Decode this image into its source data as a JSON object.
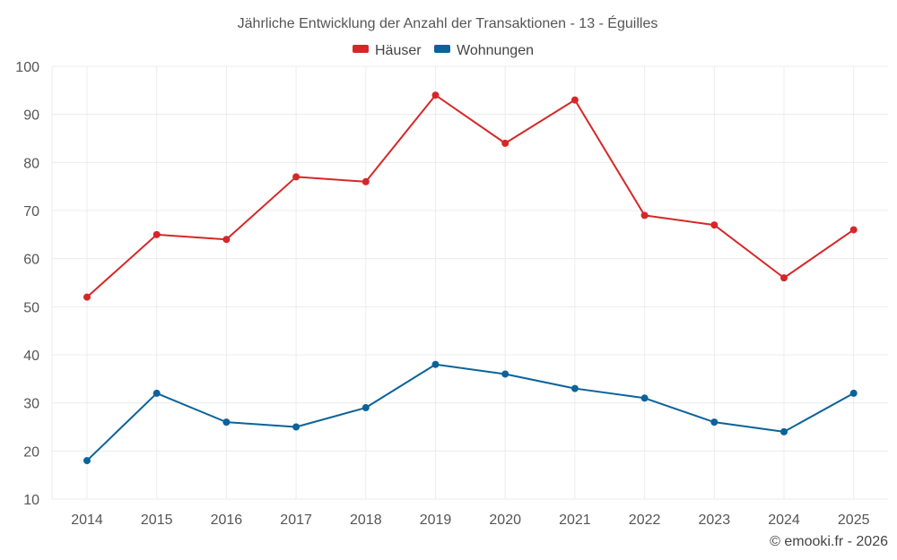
{
  "chart_data": {
    "type": "line",
    "title": "Jährliche Entwicklung der Anzahl der Transaktionen - 13 - Éguilles",
    "categories": [
      "2014",
      "2015",
      "2016",
      "2017",
      "2018",
      "2019",
      "2020",
      "2021",
      "2022",
      "2023",
      "2024",
      "2025"
    ],
    "series": [
      {
        "name": "Häuser",
        "color": "#d62728",
        "values": [
          52,
          65,
          64,
          77,
          76,
          94,
          84,
          93,
          69,
          67,
          56,
          66
        ]
      },
      {
        "name": "Wohnungen",
        "color": "#0b6399",
        "values": [
          18,
          32,
          26,
          25,
          29,
          38,
          36,
          33,
          31,
          26,
          24,
          32
        ]
      }
    ],
    "ylim": [
      10,
      100
    ],
    "yticks": [
      10,
      20,
      30,
      40,
      50,
      60,
      70,
      80,
      90,
      100
    ],
    "grid": true,
    "legend_position": "top-center"
  },
  "credit": "© emooki.fr - 2026"
}
